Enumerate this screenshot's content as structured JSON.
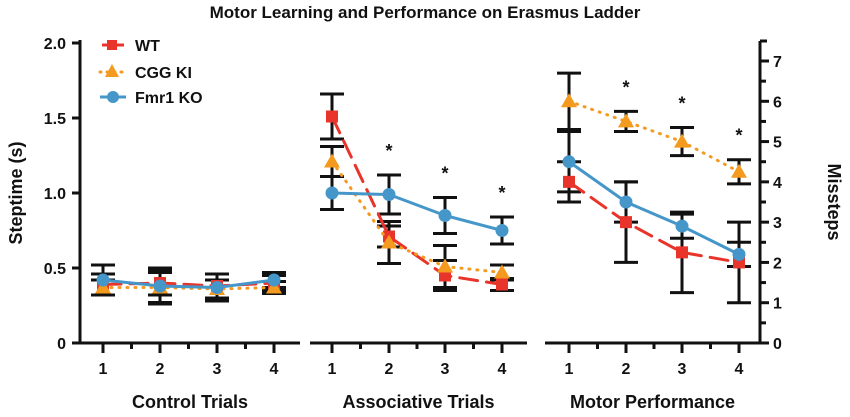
{
  "chart_data": {
    "type": "line",
    "title": "Motor Learning and Performance on Erasmus Ladder",
    "legend": {
      "placement": "top-left",
      "entries": [
        "WT",
        "CGG KI",
        "Fmr1 KO"
      ]
    },
    "colors": {
      "WT": "#e8342a",
      "CGG KI": "#f39a1f",
      "Fmr1 KO": "#4596c9"
    },
    "left_axis": {
      "label": "Steptime (s)",
      "ylim": [
        0,
        2.0
      ],
      "ticks": [
        "0",
        "0.5",
        "1.0",
        "1.5",
        "2.0"
      ]
    },
    "right_axis": {
      "label": "Missteps",
      "ylim": [
        0,
        7
      ],
      "ticks": [
        "0",
        "1",
        "2",
        "3",
        "4",
        "5",
        "6",
        "7"
      ]
    },
    "x_ticks": [
      "1",
      "2",
      "3",
      "4"
    ],
    "significance_mark": "*",
    "panels": [
      {
        "label": "Control Trials",
        "axis": "left",
        "significant": [
          false,
          false,
          false,
          false
        ],
        "series": [
          {
            "name": "WT",
            "values": [
              0.39,
              0.4,
              0.38,
              0.4
            ],
            "errors": [
              0.07,
              0.08,
              0.08,
              0.05
            ]
          },
          {
            "name": "CGG KI",
            "values": [
              0.37,
              0.37,
              0.36,
              0.37
            ],
            "errors": [
              0.05,
              0.1,
              0.06,
              0.04
            ]
          },
          {
            "name": "Fmr1 KO",
            "values": [
              0.42,
              0.38,
              0.37,
              0.42
            ],
            "errors": [
              0.1,
              0.12,
              0.09,
              0.05
            ]
          }
        ]
      },
      {
        "label": "Associative Trials",
        "axis": "left",
        "significant": [
          false,
          true,
          true,
          true
        ],
        "series": [
          {
            "name": "WT",
            "values": [
              1.51,
              0.71,
              0.45,
              0.39
            ],
            "errors": [
              0.15,
              0.07,
              0.1,
              0.04
            ]
          },
          {
            "name": "CGG KI",
            "values": [
              1.21,
              0.67,
              0.51,
              0.47
            ],
            "errors": [
              0.1,
              0.14,
              0.14,
              0.05
            ]
          },
          {
            "name": "Fmr1 KO",
            "values": [
              1.0,
              0.99,
              0.85,
              0.75
            ],
            "errors": [
              0.11,
              0.13,
              0.12,
              0.09
            ]
          }
        ]
      },
      {
        "label": "Motor Performance",
        "axis": "right",
        "significant": [
          false,
          true,
          true,
          true
        ],
        "series": [
          {
            "name": "WT",
            "values": [
              4.0,
              3.0,
              2.25,
              2.0
            ],
            "errors": [
              0.5,
              1.0,
              1.0,
              1.0
            ]
          },
          {
            "name": "CGG KI",
            "values": [
              6.0,
              5.5,
              5.0,
              4.25
            ],
            "errors": [
              0.7,
              0.25,
              0.35,
              0.3
            ]
          },
          {
            "name": "Fmr1 KO",
            "values": [
              4.5,
              3.5,
              2.9,
              2.2
            ],
            "errors": [
              0.75,
              0.5,
              0.3,
              0.3
            ]
          }
        ]
      }
    ]
  }
}
